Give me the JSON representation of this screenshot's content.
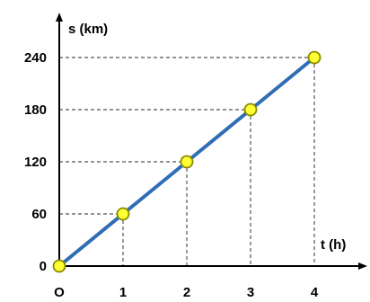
{
  "chart_data": {
    "type": "line",
    "xlabel": "t (h)",
    "ylabel": "s (km)",
    "origin_label": "O",
    "x_ticks": [
      1,
      2,
      3,
      4
    ],
    "y_ticks": [
      0,
      60,
      120,
      180,
      240
    ],
    "xlim": [
      0,
      4.5
    ],
    "ylim": [
      0,
      270
    ],
    "grid": false,
    "series": [
      {
        "x": [
          0,
          1,
          2,
          3,
          4
        ],
        "y": [
          0,
          60,
          120,
          180,
          240
        ]
      }
    ],
    "colors": {
      "line": "#2f6db5",
      "marker_fill": "#ffff33",
      "marker_stroke": "#8a8a00",
      "axes": "#000000",
      "guides": "#555555"
    }
  }
}
